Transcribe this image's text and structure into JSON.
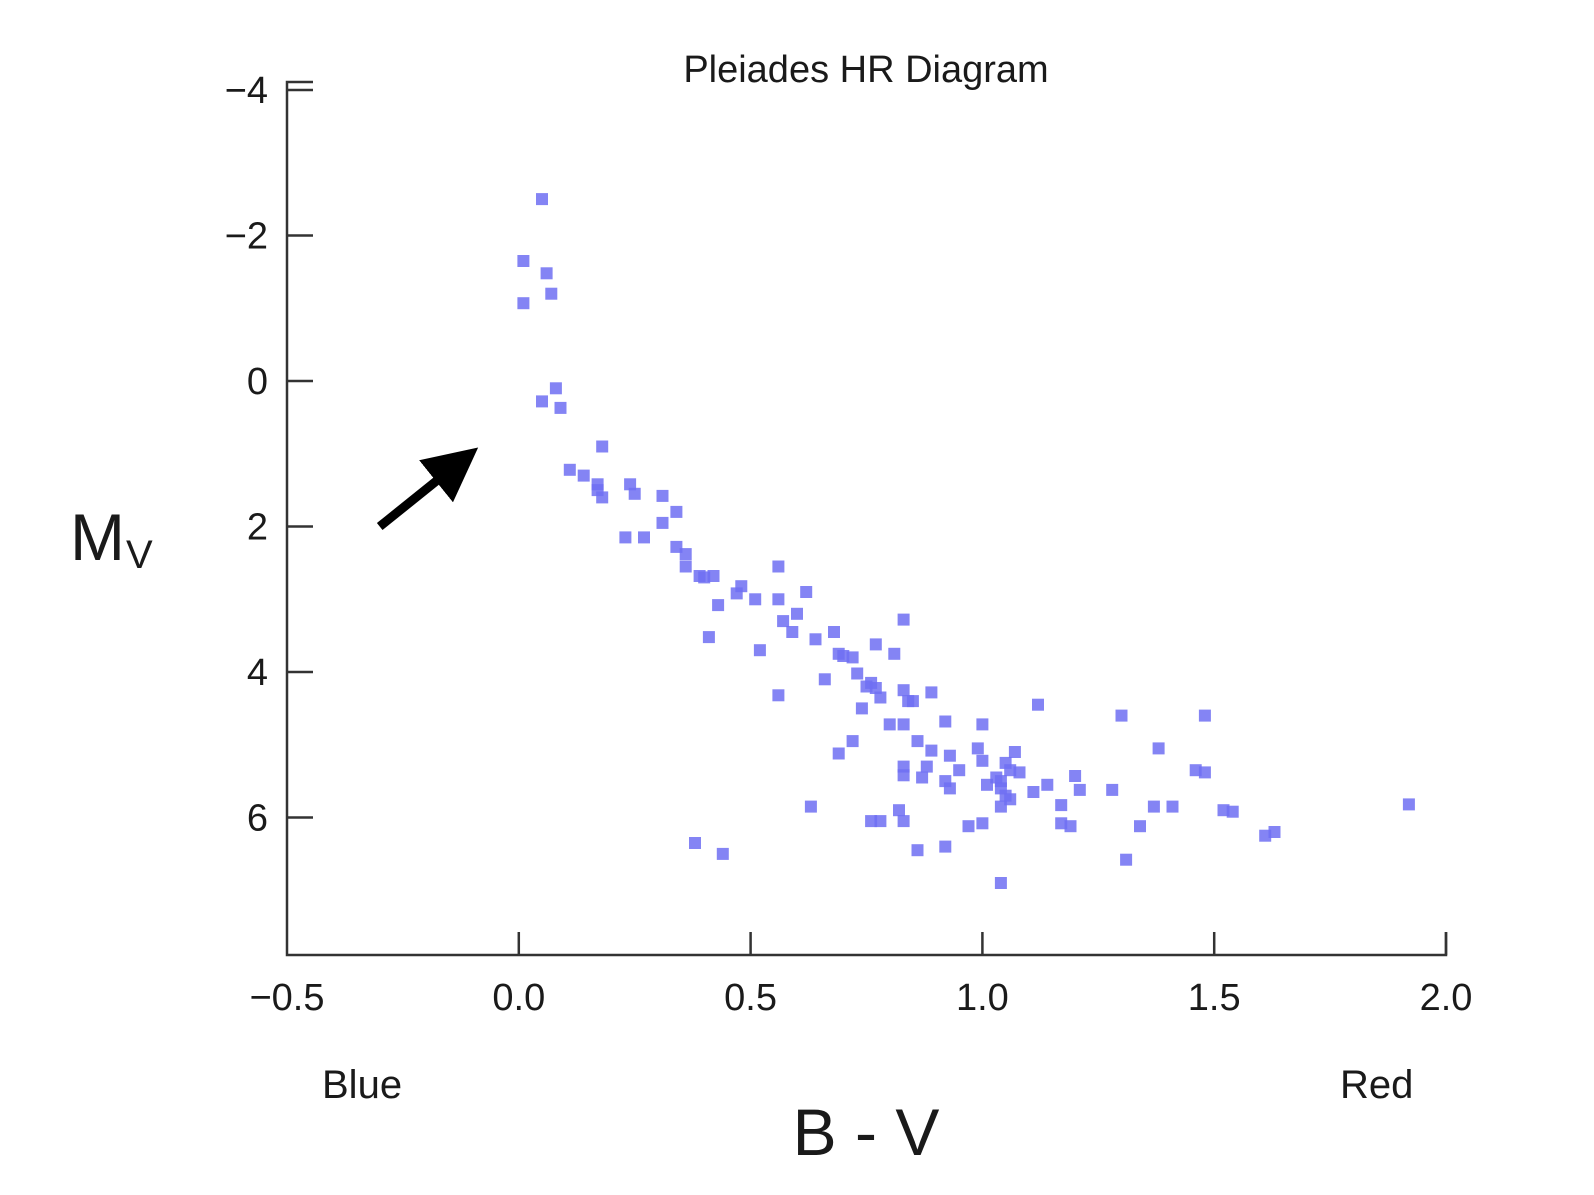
{
  "chart_data": {
    "type": "scatter",
    "title": "Pleiades HR Diagram",
    "xlabel": "B - V",
    "ylabel_main": "M",
    "ylabel_sub": "V",
    "x_left_label": "Blue",
    "x_right_label": "Red",
    "xlim": [
      -0.5,
      2.0
    ],
    "ylim": [
      -4,
      8
    ],
    "y_inverted": true,
    "x_ticks": [
      "-0.5",
      "0.0",
      "0.5",
      "1.0",
      "1.5",
      "2.0"
    ],
    "x_tick_values": [
      -0.5,
      0.0,
      0.5,
      1.0,
      1.5,
      2.0
    ],
    "y_ticks": [
      "-4",
      "-2",
      "0",
      "2",
      "4",
      "6"
    ],
    "y_tick_values": [
      -4,
      -2,
      0,
      2,
      4,
      6
    ],
    "grid": false,
    "point_color": "#6f6ff2",
    "annotation": {
      "type": "arrow",
      "target": [
        -0.05,
        0.7
      ],
      "tail": [
        -0.3,
        2.0
      ],
      "color": "#000000"
    },
    "points": [
      [
        0.05,
        -2.5
      ],
      [
        0.01,
        -1.65
      ],
      [
        0.06,
        -1.48
      ],
      [
        0.07,
        -1.2
      ],
      [
        0.01,
        -1.07
      ],
      [
        0.08,
        0.1
      ],
      [
        0.05,
        0.28
      ],
      [
        0.09,
        0.37
      ],
      [
        0.18,
        0.9
      ],
      [
        0.11,
        1.22
      ],
      [
        0.14,
        1.3
      ],
      [
        0.17,
        1.42
      ],
      [
        0.17,
        1.5
      ],
      [
        0.18,
        1.6
      ],
      [
        0.24,
        1.42
      ],
      [
        0.25,
        1.55
      ],
      [
        0.31,
        1.58
      ],
      [
        0.34,
        1.8
      ],
      [
        0.31,
        1.95
      ],
      [
        0.23,
        2.15
      ],
      [
        0.27,
        2.15
      ],
      [
        0.34,
        2.28
      ],
      [
        0.36,
        2.38
      ],
      [
        0.36,
        2.55
      ],
      [
        0.39,
        2.68
      ],
      [
        0.4,
        2.7
      ],
      [
        0.42,
        2.68
      ],
      [
        0.43,
        3.08
      ],
      [
        0.48,
        2.82
      ],
      [
        0.47,
        2.92
      ],
      [
        0.51,
        3.0
      ],
      [
        0.56,
        2.55
      ],
      [
        0.56,
        3.0
      ],
      [
        0.57,
        3.3
      ],
      [
        0.59,
        3.45
      ],
      [
        0.6,
        3.2
      ],
      [
        0.62,
        2.9
      ],
      [
        0.64,
        3.55
      ],
      [
        0.41,
        3.52
      ],
      [
        0.52,
        3.7
      ],
      [
        0.56,
        4.32
      ],
      [
        0.66,
        4.1
      ],
      [
        0.68,
        3.45
      ],
      [
        0.69,
        3.75
      ],
      [
        0.7,
        3.78
      ],
      [
        0.72,
        3.8
      ],
      [
        0.73,
        4.02
      ],
      [
        0.74,
        4.5
      ],
      [
        0.75,
        4.2
      ],
      [
        0.76,
        4.15
      ],
      [
        0.77,
        4.22
      ],
      [
        0.77,
        3.62
      ],
      [
        0.78,
        4.35
      ],
      [
        0.8,
        4.72
      ],
      [
        0.81,
        3.75
      ],
      [
        0.83,
        3.28
      ],
      [
        0.83,
        4.25
      ],
      [
        0.84,
        4.4
      ],
      [
        0.85,
        4.4
      ],
      [
        0.83,
        4.72
      ],
      [
        0.69,
        5.12
      ],
      [
        0.72,
        4.95
      ],
      [
        0.86,
        4.95
      ],
      [
        0.88,
        5.3
      ],
      [
        0.89,
        5.08
      ],
      [
        0.89,
        4.28
      ],
      [
        0.92,
        4.68
      ],
      [
        0.93,
        5.15
      ],
      [
        0.95,
        5.35
      ],
      [
        0.92,
        5.5
      ],
      [
        0.93,
        5.6
      ],
      [
        0.83,
        5.3
      ],
      [
        0.83,
        5.42
      ],
      [
        0.87,
        5.45
      ],
      [
        0.99,
        5.05
      ],
      [
        1.0,
        4.72
      ],
      [
        1.0,
        5.22
      ],
      [
        1.01,
        5.55
      ],
      [
        1.03,
        5.45
      ],
      [
        1.04,
        5.5
      ],
      [
        1.04,
        5.6
      ],
      [
        1.05,
        5.7
      ],
      [
        1.05,
        5.25
      ],
      [
        1.06,
        5.35
      ],
      [
        1.07,
        5.1
      ],
      [
        1.08,
        5.38
      ],
      [
        1.11,
        5.65
      ],
      [
        1.12,
        4.45
      ],
      [
        1.14,
        5.55
      ],
      [
        0.97,
        6.12
      ],
      [
        1.0,
        6.08
      ],
      [
        1.04,
        5.85
      ],
      [
        1.06,
        5.75
      ],
      [
        1.17,
        5.83
      ],
      [
        1.17,
        6.08
      ],
      [
        1.19,
        6.12
      ],
      [
        1.2,
        5.43
      ],
      [
        1.21,
        5.62
      ],
      [
        1.28,
        5.62
      ],
      [
        1.3,
        4.6
      ],
      [
        1.31,
        6.58
      ],
      [
        1.34,
        6.12
      ],
      [
        1.37,
        5.85
      ],
      [
        1.38,
        5.05
      ],
      [
        1.41,
        5.85
      ],
      [
        1.46,
        5.35
      ],
      [
        1.48,
        5.38
      ],
      [
        1.48,
        4.6
      ],
      [
        1.52,
        5.9
      ],
      [
        1.54,
        5.92
      ],
      [
        1.61,
        6.25
      ],
      [
        1.63,
        6.2
      ],
      [
        1.92,
        5.82
      ],
      [
        0.63,
        5.85
      ],
      [
        0.78,
        6.05
      ],
      [
        0.82,
        5.9
      ],
      [
        0.83,
        6.05
      ],
      [
        0.76,
        6.05
      ],
      [
        0.86,
        6.45
      ],
      [
        0.92,
        6.4
      ],
      [
        1.04,
        6.9
      ],
      [
        0.38,
        6.35
      ],
      [
        0.44,
        6.5
      ]
    ]
  }
}
